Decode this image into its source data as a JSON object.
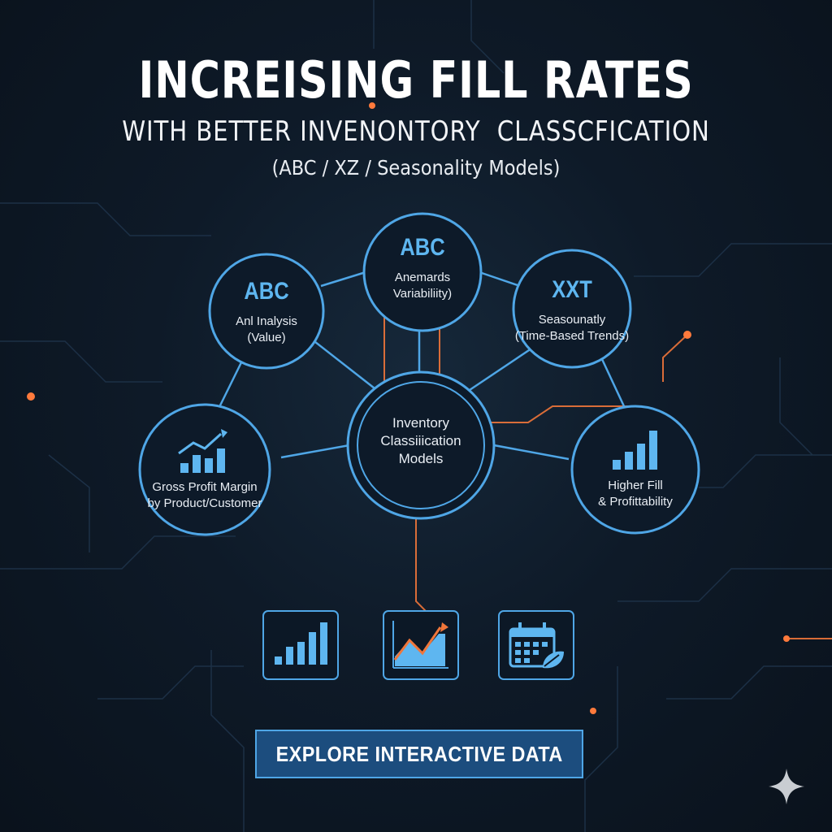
{
  "title": "INCREISING FILL RATES",
  "subtitle": "WITH BETTER INVENONTORY  CLASSCFICATION",
  "subnote": "(ABC / XZ / Seasonality Models)",
  "nodes": {
    "abc_left": {
      "head": "ABC",
      "line1": "Anl  Inalysis",
      "line2": "(Value)"
    },
    "abc_top": {
      "head": "ABC",
      "line1": "Anemards",
      "line2": "Variabiliity)"
    },
    "xxt_right": {
      "head": "XXT",
      "line1": "Seasounatly",
      "line2": "(Time-Based Trends)"
    },
    "center": {
      "line1": "Inventory",
      "line2": "Classiiication",
      "line3": "Models"
    },
    "gross_profit": {
      "line1": "Gross Profit Margin",
      "line2": "by Product/Customer",
      "icon": "bar-chart-trend-icon"
    },
    "higher_fill": {
      "line1": "Higher Fill",
      "line2": "& Profittability",
      "icon": "bar-chart-icon"
    }
  },
  "icons": [
    "bar-chart-icon",
    "line-chart-icon",
    "calendar-leaf-icon"
  ],
  "cta_label": "EXPLORE INTERACTIVE DATA",
  "colors": {
    "accent_blue": "#4fa6e6",
    "accent_orange": "#f0763a",
    "background": "#0e1a28",
    "head_blue": "#5eb6f0"
  }
}
